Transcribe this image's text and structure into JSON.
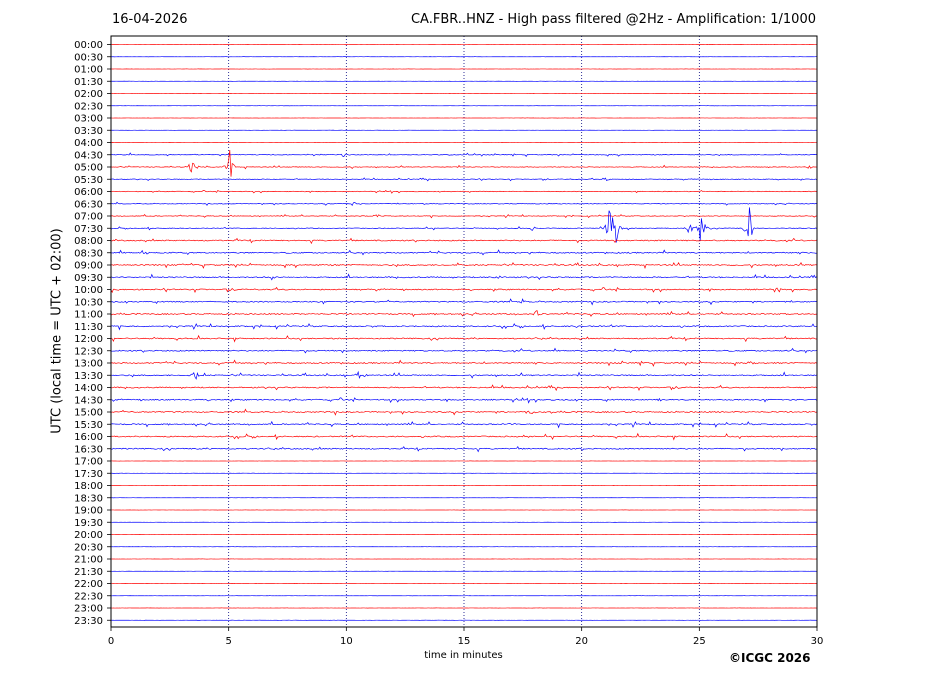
{
  "header": {
    "date": "16-04-2026",
    "title": "CA.FBR..HNZ - High pass filtered @2Hz - Amplification: 1/1000"
  },
  "footer": {
    "copyright": "©ICGC 2026"
  },
  "colors": {
    "trace_red": "#ff0000",
    "trace_blue": "#0000ff",
    "grid": "#000080",
    "axis": "#000000"
  },
  "chart_data": {
    "type": "line",
    "title": "CA.FBR..HNZ - High pass filtered @2Hz - Amplification: 1/1000",
    "xlabel": "time in minutes",
    "ylabel": "UTC (local time = UTC + 02:00)",
    "xlim": [
      0,
      30
    ],
    "x_ticks": [
      "0",
      "5",
      "10",
      "15",
      "20",
      "25",
      "30"
    ],
    "grid": "vertical dotted lines at 5, 10, 15, 20, 25",
    "row_labels": [
      "00:00",
      "00:30",
      "01:00",
      "01:30",
      "02:00",
      "02:30",
      "03:00",
      "03:30",
      "04:00",
      "04:30",
      "05:00",
      "05:30",
      "06:00",
      "06:30",
      "07:00",
      "07:30",
      "08:00",
      "08:30",
      "09:00",
      "09:30",
      "10:00",
      "10:30",
      "11:00",
      "11:30",
      "12:00",
      "12:30",
      "13:00",
      "13:30",
      "14:00",
      "14:30",
      "15:00",
      "15:30",
      "16:00",
      "16:30",
      "17:00",
      "17:30",
      "18:00",
      "18:30",
      "19:00",
      "19:30",
      "20:00",
      "20:30",
      "21:00",
      "21:30",
      "22:00",
      "22:30",
      "23:00",
      "23:30"
    ],
    "trace_color_cycle": [
      "red",
      "blue"
    ],
    "events": [
      {
        "row": "04:30",
        "minute": 9.9,
        "amplitude": 0.3
      },
      {
        "row": "05:00",
        "minute": 3.5,
        "amplitude": 1.8
      },
      {
        "row": "05:00",
        "minute": 5.05,
        "amplitude": 2.2
      },
      {
        "row": "05:00",
        "minute": 29.7,
        "amplitude": 0.3
      },
      {
        "row": "05:30",
        "minute": 21.0,
        "amplitude": 0.4
      },
      {
        "row": "06:30",
        "minute": 10.3,
        "amplitude": 0.25
      },
      {
        "row": "07:00",
        "minute": 11.3,
        "amplitude": 0.25
      },
      {
        "row": "07:30",
        "minute": 17.9,
        "amplitude": 0.25
      },
      {
        "row": "07:30",
        "minute": 21.2,
        "amplitude": 2.5
      },
      {
        "row": "07:30",
        "minute": 21.45,
        "amplitude": 2.2
      },
      {
        "row": "07:30",
        "minute": 24.6,
        "amplitude": 1.0
      },
      {
        "row": "07:30",
        "minute": 25.1,
        "amplitude": 2.3
      },
      {
        "row": "07:30",
        "minute": 27.1,
        "amplitude": 2.5
      },
      {
        "row": "08:30",
        "minute": 1.6,
        "amplitude": 0.2
      },
      {
        "row": "09:00",
        "minute": 3.0,
        "amplitude": 0.2
      },
      {
        "row": "09:30",
        "minute": 6.9,
        "amplitude": 0.2
      },
      {
        "row": "09:30",
        "minute": 16.5,
        "amplitude": 0.2
      },
      {
        "row": "10:00",
        "minute": 28.4,
        "amplitude": 0.2
      },
      {
        "row": "10:30",
        "minute": 17.5,
        "amplitude": 0.25
      },
      {
        "row": "11:00",
        "minute": 18.1,
        "amplitude": 0.35
      },
      {
        "row": "11:30",
        "minute": 19.7,
        "amplitude": 0.2
      },
      {
        "row": "13:30",
        "minute": 10.6,
        "amplitude": 0.9
      },
      {
        "row": "13:30",
        "minute": 3.6,
        "amplitude": 0.5
      },
      {
        "row": "13:00",
        "minute": 27.2,
        "amplitude": 0.3
      },
      {
        "row": "14:30",
        "minute": 23.4,
        "amplitude": 0.3
      },
      {
        "row": "15:00",
        "minute": 17.9,
        "amplitude": 0.35
      },
      {
        "row": "15:30",
        "minute": 17.0,
        "amplitude": 0.2
      },
      {
        "row": "16:00",
        "minute": 17.8,
        "amplitude": 0.2
      }
    ]
  }
}
